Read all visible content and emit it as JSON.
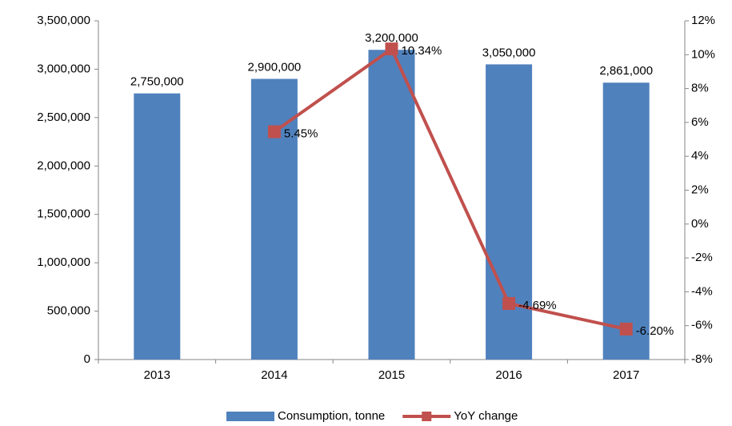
{
  "chart_data": {
    "type": "bar",
    "categories": [
      "2013",
      "2014",
      "2015",
      "2016",
      "2017"
    ],
    "series": [
      {
        "name": "Consumption, tonne",
        "type": "bar",
        "color": "#4f81bd",
        "values": [
          2750000,
          2900000,
          3200000,
          3050000,
          2861000
        ],
        "value_labels": [
          "2,750,000",
          "2,900,000",
          "3,200,000",
          "3,050,000",
          "2,861,000"
        ]
      },
      {
        "name": "YoY change",
        "type": "line",
        "axis": "y2",
        "color": "#c0504d",
        "values": [
          null,
          5.45,
          10.34,
          -4.69,
          -6.2
        ],
        "value_labels": [
          null,
          "5.45%",
          "10.34%",
          "-4.69%",
          "-6.20%"
        ]
      }
    ],
    "ylim": [
      0,
      3500000
    ],
    "yticks": [
      0,
      {
        "value": 500000,
        "label": "500,000"
      },
      {
        "value": 1000000,
        "label": "1,000,000"
      },
      {
        "value": 1500000,
        "label": "1,500,000"
      },
      {
        "value": 2000000,
        "label": "2,000,000"
      },
      {
        "value": 2500000,
        "label": "2,500,000"
      },
      {
        "value": 3000000,
        "label": "3,000,000"
      },
      {
        "value": 3500000,
        "label": "3,500,000"
      }
    ],
    "y2lim": [
      -8,
      12
    ],
    "y2ticks": [
      {
        "value": -8,
        "label": "-8%"
      },
      {
        "value": -6,
        "label": "-6%"
      },
      {
        "value": -4,
        "label": "-4%"
      },
      {
        "value": -2,
        "label": "-2%"
      },
      {
        "value": 0,
        "label": "0%"
      },
      {
        "value": 2,
        "label": "2%"
      },
      {
        "value": 4,
        "label": "4%"
      },
      {
        "value": 6,
        "label": "6%"
      },
      {
        "value": 8,
        "label": "8%"
      },
      {
        "value": 10,
        "label": "10%"
      },
      {
        "value": 12,
        "label": "12%"
      }
    ],
    "grid": false,
    "legend": "bottom"
  }
}
